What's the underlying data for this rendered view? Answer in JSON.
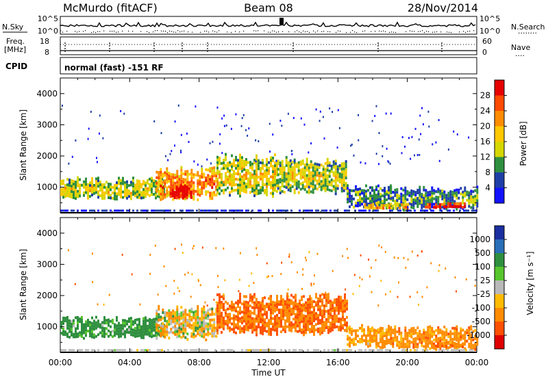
{
  "header": {
    "station": "McMurdo (fitACF)",
    "beam": "Beam 08",
    "date": "28/Nov/2014"
  },
  "noise_panel": {
    "left_label": "N.Sky",
    "right_label": "N.Search",
    "right_label_dots": "........",
    "y_ticks_left": [
      "10^5",
      "10^0"
    ],
    "y_ticks_right": [
      "10^5",
      "10^0"
    ]
  },
  "freq_panel": {
    "left_label_1": "Freq.",
    "left_label_2": "[MHz]",
    "right_label": "Nave",
    "right_label_dots": "....",
    "y_ticks_left": [
      "18",
      "8"
    ],
    "y_ticks_right": [
      "60",
      "0"
    ]
  },
  "cpid": {
    "label": "CPID",
    "value": "normal (fast) -151 RF"
  },
  "power_panel": {
    "ylabel": "Slant Range [km]",
    "colorbar_label": "Power [dB]",
    "colorbar_ticks": [
      "28",
      "24",
      "20",
      "16",
      "12",
      "8",
      "4"
    ],
    "colorbar_colors": [
      "#e60000",
      "#ff4a00",
      "#ff8c00",
      "#ffc800",
      "#d6d600",
      "#2f8f3f",
      "#1f3fa8",
      "#1212ff"
    ]
  },
  "velocity_panel": {
    "ylabel": "Slant Range [km]",
    "colorbar_label": "Velocity [m s⁻¹]",
    "colorbar_ticks": [
      "1000",
      "500",
      "100",
      "25",
      "-25",
      "-100",
      "-500",
      "-1000"
    ],
    "colorbar_colors": [
      "#1a2fa0",
      "#2a6fb8",
      "#2f8f3f",
      "#57c52d",
      "#b9b9b9",
      "#ffbb00",
      "#ff8c00",
      "#ff5000",
      "#e00000"
    ]
  },
  "x_axis": {
    "label": "Time UT",
    "ticks": [
      "00:00",
      "04:00",
      "08:00",
      "12:00",
      "16:00",
      "20:00",
      "00:00"
    ]
  },
  "chart_data": [
    {
      "type": "heatmap",
      "title": "Power",
      "xlabel": "Time UT",
      "ylabel": "Slant Range [km]",
      "xlim": [
        0,
        24
      ],
      "ylim": [
        180,
        4500
      ],
      "y_ticks": [
        1000,
        2000,
        3000,
        4000
      ],
      "colorbar_label": "Power [dB]",
      "colorbar_range": [
        0,
        32
      ],
      "regions": [
        {
          "t0": 0.0,
          "t1": 6.0,
          "r0": 650,
          "r1": 1350,
          "level": 0.45
        },
        {
          "t0": 5.5,
          "t1": 9.0,
          "r0": 600,
          "r1": 1700,
          "level": 0.7
        },
        {
          "t0": 6.3,
          "t1": 7.6,
          "r0": 650,
          "r1": 1100,
          "level": 1.0
        },
        {
          "t0": 9.0,
          "t1": 12.5,
          "r0": 700,
          "r1": 2100,
          "level": 0.5
        },
        {
          "t0": 12.5,
          "t1": 16.5,
          "r0": 800,
          "r1": 2000,
          "level": 0.45
        },
        {
          "t0": 16.5,
          "t1": 19.0,
          "r0": 350,
          "r1": 1100,
          "level": 0.3
        },
        {
          "t0": 19.0,
          "t1": 24.0,
          "r0": 300,
          "r1": 1050,
          "level": 0.3
        },
        {
          "t0": 21.0,
          "t1": 23.3,
          "r0": 350,
          "r1": 520,
          "level": 0.95
        },
        {
          "t0": 17.5,
          "t1": 20.0,
          "r0": 300,
          "r1": 500,
          "level": 0.6
        }
      ]
    },
    {
      "type": "heatmap",
      "title": "Velocity",
      "xlabel": "Time UT",
      "ylabel": "Slant Range [km]",
      "xlim": [
        0,
        24
      ],
      "ylim": [
        180,
        4500
      ],
      "y_ticks": [
        1000,
        2000,
        3000,
        4000
      ],
      "colorbar_label": "Velocity [m s⁻¹]",
      "colorbar_range": [
        -1000,
        1000
      ],
      "regions": [
        {
          "t0": 0.0,
          "t1": 6.0,
          "r0": 650,
          "r1": 1350,
          "velocity": 150
        },
        {
          "t0": 5.5,
          "t1": 9.0,
          "r0": 600,
          "r1": 1700,
          "velocity": -40
        },
        {
          "t0": 9.0,
          "t1": 16.5,
          "r0": 750,
          "r1": 2100,
          "velocity": -300
        },
        {
          "t0": 16.5,
          "t1": 19.0,
          "r0": 350,
          "r1": 1100,
          "velocity": -150
        },
        {
          "t0": 19.0,
          "t1": 24.0,
          "r0": 300,
          "r1": 1050,
          "velocity": -200
        },
        {
          "t0": 21.0,
          "t1": 23.3,
          "r0": 350,
          "r1": 520,
          "velocity": -250
        }
      ]
    }
  ]
}
